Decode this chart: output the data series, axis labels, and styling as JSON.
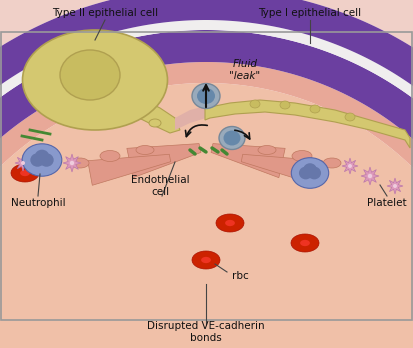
{
  "bg_color": "#ffffff",
  "labels": {
    "type2": "Type II epithelial cell",
    "type1": "Type I epithelial cell",
    "fluid": "Fluid\n\"leak\"",
    "endothelial": "Endothelial\ncell",
    "neutrophil": "Neutrophil",
    "rbc": "rbc",
    "platelet": "Platelet",
    "disrupted": "Disrupted VE-cadherin\nbonds"
  },
  "colors": {
    "purple": "#6b3fa0",
    "purple_dark": "#5a2d8a",
    "white_band": "#f0eeee",
    "vessel_pink": "#e8a898",
    "vessel_pink2": "#dda090",
    "lumen_pink": "#f0c0a8",
    "alveolar_pink": "#f0d0c8",
    "alveolar_bg": "#f5e8e0",
    "epithelial_pink": "#e8c0b8",
    "cell_yellow": "#d4c870",
    "cell_yellow2": "#c8bc60",
    "cell_yellow_dark": "#b0a050",
    "rbc_red": "#cc2200",
    "rbc_light": "#dd4422",
    "neutrophil_blue": "#8899cc",
    "neutrophil_nucleus": "#6677aa",
    "platelet_pink": "#dd99bb",
    "green_line": "#448833",
    "arrow_dark": "#111111",
    "label_dark": "#222222",
    "border": "#999999"
  }
}
